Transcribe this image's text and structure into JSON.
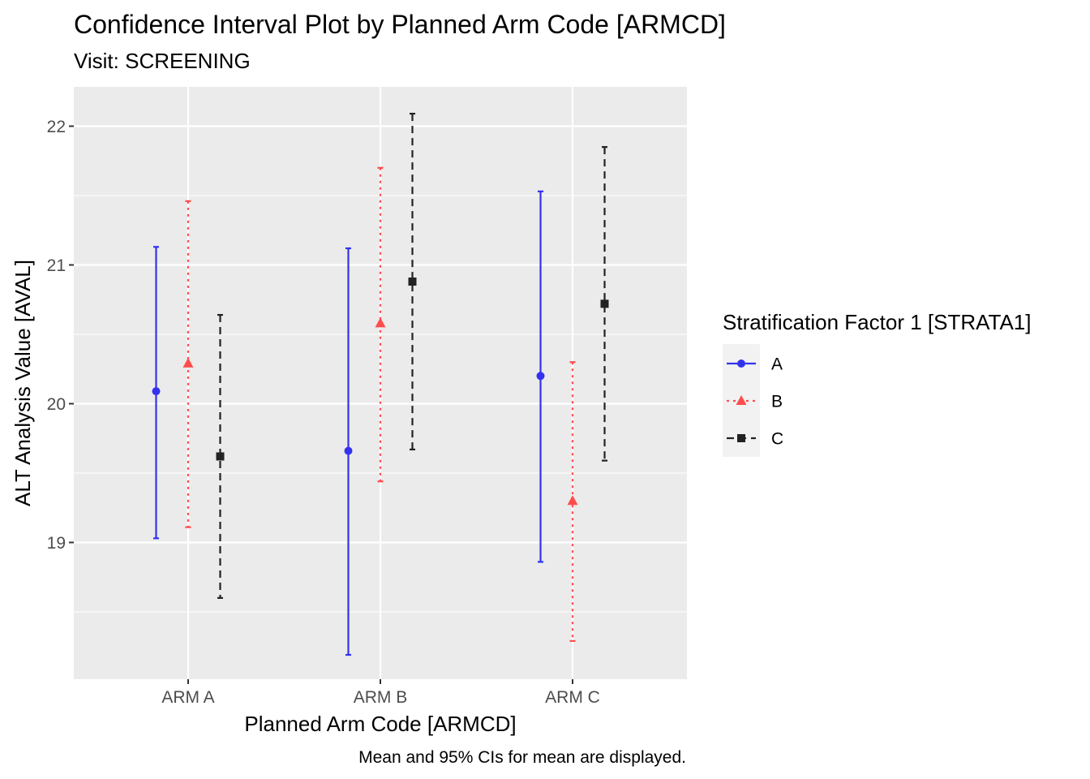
{
  "chart_data": {
    "type": "errorbar",
    "title": "Confidence Interval Plot by Planned Arm Code [ARMCD]",
    "subtitle": "Visit: SCREENING",
    "xlabel": "Planned Arm Code [ARMCD]",
    "ylabel": "ALT Analysis Value [AVAL]",
    "caption": "Mean and 95% CIs for mean are displayed.",
    "categories": [
      "ARM A",
      "ARM B",
      "ARM C"
    ],
    "ylim": [
      18.0,
      22.3
    ],
    "yticks": [
      19,
      20,
      21,
      22
    ],
    "grid": true,
    "legend": {
      "title": "Stratification Factor 1 [STRATA1]",
      "position": "right"
    },
    "series": [
      {
        "name": "A",
        "color": "#3333ee",
        "linetype": "solid",
        "shape": "circle",
        "mean": [
          20.09,
          19.66,
          20.2
        ],
        "lower": [
          19.03,
          18.19,
          18.86
        ],
        "upper": [
          21.13,
          21.12,
          21.53
        ]
      },
      {
        "name": "B",
        "color": "#ff4d4d",
        "linetype": "dotted",
        "shape": "triangle",
        "mean": [
          20.29,
          20.58,
          19.3
        ],
        "lower": [
          19.11,
          19.44,
          18.29
        ],
        "upper": [
          21.46,
          21.7,
          20.3
        ]
      },
      {
        "name": "C",
        "color": "#222222",
        "linetype": "dashed",
        "shape": "square",
        "mean": [
          19.62,
          20.88,
          20.72
        ],
        "lower": [
          18.6,
          19.67,
          19.59
        ],
        "upper": [
          20.64,
          22.09,
          21.85
        ]
      }
    ]
  }
}
